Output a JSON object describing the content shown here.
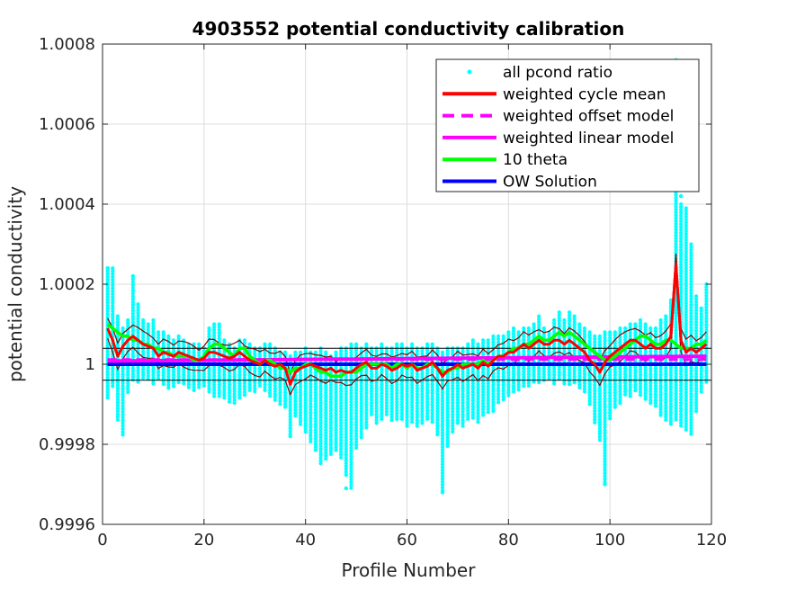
{
  "chart_data": {
    "type": "scatter",
    "title": "4903552 potential conductivity calibration",
    "xlabel": "Profile Number",
    "ylabel": "potential conductivity",
    "xlim": [
      0,
      120
    ],
    "ylim": [
      0.9996,
      1.0008
    ],
    "grid": true,
    "legend_position": "top-right",
    "x_ticks": [
      0,
      20,
      40,
      60,
      80,
      100,
      120
    ],
    "x_tick_labels": [
      "0",
      "20",
      "40",
      "60",
      "80",
      "100",
      "120"
    ],
    "y_ticks": [
      0.9996,
      0.9998,
      1.0,
      1.0002,
      1.0004,
      1.0006,
      1.0008
    ],
    "y_tick_labels": [
      "0.9996",
      "0.9998",
      "1",
      "1.0002",
      "1.0004",
      "1.0006",
      "1.0008"
    ],
    "reference_lines": [
      0.99996,
      1.00004
    ],
    "legend": [
      {
        "label": "all pcond ratio",
        "style": "dot",
        "color": "#00ffff"
      },
      {
        "label": "weighted cycle mean",
        "style": "solid",
        "color": "#ff0000"
      },
      {
        "label": "weighted offset model",
        "style": "dashed",
        "color": "#ff00ff"
      },
      {
        "label": "weighted linear model",
        "style": "solid",
        "color": "#ff00ff"
      },
      {
        "label": "10 theta",
        "style": "solid",
        "color": "#00ff00"
      },
      {
        "label": "OW Solution",
        "style": "solid",
        "color": "#0000ff"
      }
    ],
    "colors": {
      "pcond": "#00ffff",
      "cycle_mean": "#ff0000",
      "cycle_err": "#8b0000",
      "model": "#ff00ff",
      "theta": "#00ff00",
      "ow": "#0000ff",
      "ref": "#000000"
    },
    "series": [
      {
        "name": "weighted cycle mean",
        "x": [
          1,
          2,
          3,
          4,
          5,
          6,
          7,
          8,
          9,
          10,
          11,
          12,
          13,
          14,
          15,
          16,
          17,
          18,
          19,
          20,
          21,
          22,
          23,
          24,
          25,
          26,
          27,
          28,
          29,
          30,
          31,
          32,
          33,
          34,
          35,
          36,
          37,
          38,
          39,
          40,
          41,
          42,
          43,
          44,
          45,
          46,
          47,
          48,
          49,
          50,
          51,
          52,
          53,
          54,
          55,
          56,
          57,
          58,
          59,
          60,
          61,
          62,
          63,
          64,
          65,
          66,
          67,
          68,
          69,
          70,
          71,
          72,
          73,
          74,
          75,
          76,
          77,
          78,
          79,
          80,
          81,
          82,
          83,
          84,
          85,
          86,
          87,
          88,
          89,
          90,
          91,
          92,
          93,
          94,
          95,
          96,
          97,
          98,
          99,
          100,
          101,
          102,
          103,
          104,
          105,
          106,
          107,
          108,
          109,
          110,
          111,
          112,
          113,
          114,
          115,
          116,
          117,
          118,
          119
        ],
        "y": [
          1.00009,
          1.00006,
          1.00002,
          1.000045,
          1.00006,
          1.00007,
          1.00006,
          1.00005,
          1.000045,
          1.00004,
          1.00002,
          1.00003,
          1.000025,
          1.00002,
          1.00003,
          1.000025,
          1.00002,
          1.000015,
          1.00001,
          1.000015,
          1.00003,
          1.00003,
          1.000025,
          1.00002,
          1.000015,
          1.00002,
          1.00003,
          1.00002,
          1.00001,
          1.000005,
          1.0,
          1.00001,
          1.0,
          0.999995,
          1.0,
          0.99999,
          0.99995,
          0.99998,
          0.99999,
          0.999995,
          1.0,
          0.999995,
          0.99999,
          0.999985,
          0.99999,
          0.99998,
          0.999985,
          0.99998,
          0.99998,
          0.99999,
          1.0,
          1.000005,
          0.99999,
          0.99999,
          1.0,
          0.999995,
          0.999985,
          0.99999,
          1.0,
          0.999995,
          1.0,
          0.999985,
          0.99999,
          0.999995,
          1.000005,
          0.99999,
          0.99997,
          0.999985,
          0.99999,
          1.0,
          0.99999,
          0.999995,
          1.0,
          0.99999,
          1.000005,
          0.999995,
          1.00001,
          1.00002,
          1.00002,
          1.00003,
          1.00003,
          1.00004,
          1.00005,
          1.00004,
          1.00005,
          1.00006,
          1.00005,
          1.00005,
          1.00006,
          1.00006,
          1.00005,
          1.00006,
          1.00005,
          1.00004,
          1.00003,
          1.00001,
          1.0,
          0.99998,
          1.000005,
          1.00002,
          1.00003,
          1.00004,
          1.00005,
          1.00006,
          1.00006,
          1.00005,
          1.00004,
          1.00005,
          1.00004,
          1.00004,
          1.00005,
          1.00007,
          1.00025,
          1.00006,
          1.00003,
          1.00004,
          1.00003,
          1.00004,
          1.00005
        ]
      },
      {
        "name": "10 theta",
        "x": [
          1,
          2,
          3,
          4,
          5,
          6,
          7,
          8,
          9,
          10,
          11,
          12,
          13,
          14,
          15,
          16,
          17,
          18,
          19,
          20,
          21,
          22,
          23,
          24,
          25,
          26,
          27,
          28,
          29,
          30,
          31,
          32,
          33,
          34,
          35,
          36,
          37,
          38,
          39,
          40,
          41,
          42,
          43,
          44,
          45,
          46,
          47,
          48,
          49,
          50,
          51,
          52,
          53,
          54,
          55,
          56,
          57,
          58,
          59,
          60,
          61,
          62,
          63,
          64,
          65,
          66,
          67,
          68,
          69,
          70,
          71,
          72,
          73,
          74,
          75,
          76,
          77,
          78,
          79,
          80,
          81,
          82,
          83,
          84,
          85,
          86,
          87,
          88,
          89,
          90,
          91,
          92,
          93,
          94,
          95,
          96,
          97,
          98,
          99,
          100,
          101,
          102,
          103,
          104,
          105,
          106,
          107,
          108,
          109,
          110,
          111,
          112,
          113,
          114,
          115,
          116,
          117,
          118,
          119
        ],
        "y": [
          1.0001,
          1.00009,
          1.00008,
          1.00007,
          1.00007,
          1.00006,
          1.00006,
          1.00005,
          1.00005,
          1.00004,
          1.00004,
          1.00003,
          1.00003,
          1.00002,
          1.00002,
          1.00002,
          1.00002,
          1.00001,
          1.00001,
          1.00002,
          1.00004,
          1.00005,
          1.00005,
          1.00004,
          1.00003,
          1.00002,
          1.00004,
          1.00004,
          1.00002,
          1.00001,
          1.0,
          1.00001,
          1.00001,
          1.0,
          0.99999,
          0.99999,
          0.99998,
          0.99999,
          0.99999,
          1.0,
          1.0,
          0.99999,
          0.99998,
          0.99998,
          0.99997,
          0.99997,
          0.99997,
          0.99998,
          0.99998,
          0.99998,
          0.99999,
          1.0,
          1.0,
          1.0,
          1.0,
          1.0,
          0.99999,
          1.0,
          1.0,
          0.99999,
          1.0,
          0.99999,
          0.99999,
          1.0,
          1.0,
          0.99999,
          0.99998,
          0.99998,
          0.99999,
          0.99999,
          1.0,
          1.0,
          1.0,
          1.0,
          1.00001,
          1.0,
          1.00001,
          1.00002,
          1.00002,
          1.00003,
          1.00004,
          1.00004,
          1.00005,
          1.00005,
          1.00006,
          1.00007,
          1.00006,
          1.00006,
          1.00007,
          1.00008,
          1.00007,
          1.00008,
          1.00007,
          1.00006,
          1.00005,
          1.00004,
          1.00003,
          1.00002,
          1.00001,
          1.00001,
          1.00002,
          1.00003,
          1.00004,
          1.00005,
          1.00006,
          1.00007,
          1.00007,
          1.00006,
          1.00005,
          1.00005,
          1.00006,
          1.00006,
          1.00005,
          1.00004,
          1.00004,
          1.00004,
          1.00005,
          1.00005,
          1.00006
        ]
      },
      {
        "name": "weighted linear model",
        "x": [
          1,
          119
        ],
        "y": [
          1.000008,
          1.00002
        ]
      },
      {
        "name": "weighted offset model",
        "x": [
          1,
          119
        ],
        "y": [
          1.000012,
          1.000012
        ]
      },
      {
        "name": "OW Solution",
        "x": [
          1,
          119
        ],
        "y": [
          1.0,
          1.0
        ]
      }
    ],
    "pcond_scatter_ranges": {
      "x": [
        1,
        2,
        3,
        4,
        5,
        6,
        7,
        8,
        9,
        10,
        11,
        12,
        13,
        14,
        15,
        16,
        17,
        18,
        19,
        20,
        21,
        22,
        23,
        24,
        25,
        26,
        27,
        28,
        29,
        30,
        31,
        32,
        33,
        34,
        35,
        36,
        37,
        38,
        39,
        40,
        41,
        42,
        43,
        44,
        45,
        46,
        47,
        48,
        49,
        50,
        51,
        52,
        53,
        54,
        55,
        56,
        57,
        58,
        59,
        60,
        61,
        62,
        63,
        64,
        65,
        66,
        67,
        68,
        69,
        70,
        71,
        72,
        73,
        74,
        75,
        76,
        77,
        78,
        79,
        80,
        81,
        82,
        83,
        84,
        85,
        86,
        87,
        88,
        89,
        90,
        91,
        92,
        93,
        94,
        95,
        96,
        97,
        98,
        99,
        100,
        101,
        102,
        103,
        104,
        105,
        106,
        107,
        108,
        109,
        110,
        111,
        112,
        113,
        114,
        115,
        116,
        117,
        118,
        119
      ],
      "low": [
        0.99991,
        0.99994,
        0.99986,
        0.99982,
        0.99993,
        0.99996,
        0.99995,
        0.99996,
        0.99996,
        0.99995,
        0.99996,
        0.99995,
        0.99994,
        0.99994,
        0.99995,
        0.99995,
        0.99994,
        0.99993,
        0.99994,
        0.99994,
        0.99993,
        0.99992,
        0.99992,
        0.99991,
        0.9999,
        0.9999,
        0.99991,
        0.99992,
        0.99993,
        0.99993,
        0.99994,
        0.99993,
        0.99992,
        0.99991,
        0.9999,
        0.99989,
        0.99982,
        0.99987,
        0.99985,
        0.99983,
        0.9998,
        0.99978,
        0.99975,
        0.99976,
        0.99977,
        0.99978,
        0.99976,
        0.99972,
        0.99969,
        0.99979,
        0.99981,
        0.99984,
        0.99987,
        0.99985,
        0.99986,
        0.99987,
        0.99986,
        0.99986,
        0.99986,
        0.99984,
        0.99985,
        0.99984,
        0.99985,
        0.99986,
        0.99985,
        0.99982,
        0.99968,
        0.99979,
        0.99983,
        0.99985,
        0.99984,
        0.99986,
        0.99986,
        0.99985,
        0.99987,
        0.99988,
        0.99988,
        0.9999,
        0.99991,
        0.99992,
        0.99993,
        0.99993,
        0.99994,
        0.99994,
        0.99995,
        0.99995,
        0.99996,
        0.99996,
        0.99995,
        0.99996,
        0.99995,
        0.99995,
        0.99995,
        0.99994,
        0.99993,
        0.9999,
        0.99985,
        0.99981,
        0.9997,
        0.99986,
        0.99989,
        0.9999,
        0.99992,
        0.99992,
        0.99993,
        0.99992,
        0.99991,
        0.9999,
        0.99989,
        0.99987,
        0.99986,
        0.99985,
        0.99986,
        0.99984,
        0.99983,
        0.99982,
        0.99988,
        0.99993,
        0.99995
      ],
      "high": [
        1.00024,
        1.00024,
        1.00012,
        1.00009,
        1.00011,
        1.00022,
        1.00015,
        1.00011,
        1.0001,
        1.00011,
        1.00008,
        1.00008,
        1.00007,
        1.00006,
        1.00007,
        1.00006,
        1.00005,
        1.00005,
        1.00005,
        1.00004,
        1.00009,
        1.0001,
        1.0001,
        1.00006,
        1.00005,
        1.00004,
        1.00006,
        1.00006,
        1.00005,
        1.00004,
        1.00004,
        1.00005,
        1.00005,
        1.00004,
        1.00003,
        1.00003,
        1.00002,
        1.00003,
        1.00003,
        1.00004,
        1.00003,
        1.00003,
        1.00004,
        1.00003,
        1.00002,
        1.00003,
        1.00004,
        1.00004,
        1.00005,
        1.00005,
        1.00004,
        1.00005,
        1.00004,
        1.00004,
        1.00005,
        1.00004,
        1.00004,
        1.00005,
        1.00005,
        1.00004,
        1.00005,
        1.00004,
        1.00004,
        1.00005,
        1.00005,
        1.00004,
        1.00003,
        1.00004,
        1.00004,
        1.00004,
        1.00004,
        1.00005,
        1.00006,
        1.00005,
        1.00006,
        1.00006,
        1.00007,
        1.00007,
        1.00007,
        1.00008,
        1.00009,
        1.00008,
        1.00009,
        1.00009,
        1.0001,
        1.00012,
        1.00009,
        1.00008,
        1.00011,
        1.00013,
        1.00011,
        1.00013,
        1.00012,
        1.0001,
        1.00009,
        1.00008,
        1.00007,
        1.00007,
        1.00008,
        1.00008,
        1.00008,
        1.00009,
        1.00009,
        1.0001,
        1.0001,
        1.00011,
        1.0001,
        1.00009,
        1.00009,
        1.00011,
        1.00012,
        1.00016,
        1.00043,
        1.0004,
        1.00039,
        1.0003,
        1.00017,
        1.00014,
        1.0002
      ]
    },
    "pcond_outliers": [
      [
        113,
        1.00076
      ],
      [
        114,
        1.00042
      ],
      [
        1,
        1.00024
      ],
      [
        6,
        1.00022
      ],
      [
        48,
        0.99969
      ],
      [
        67,
        0.99968
      ],
      [
        99,
        0.9997
      ],
      [
        37,
        0.99982
      ]
    ]
  }
}
